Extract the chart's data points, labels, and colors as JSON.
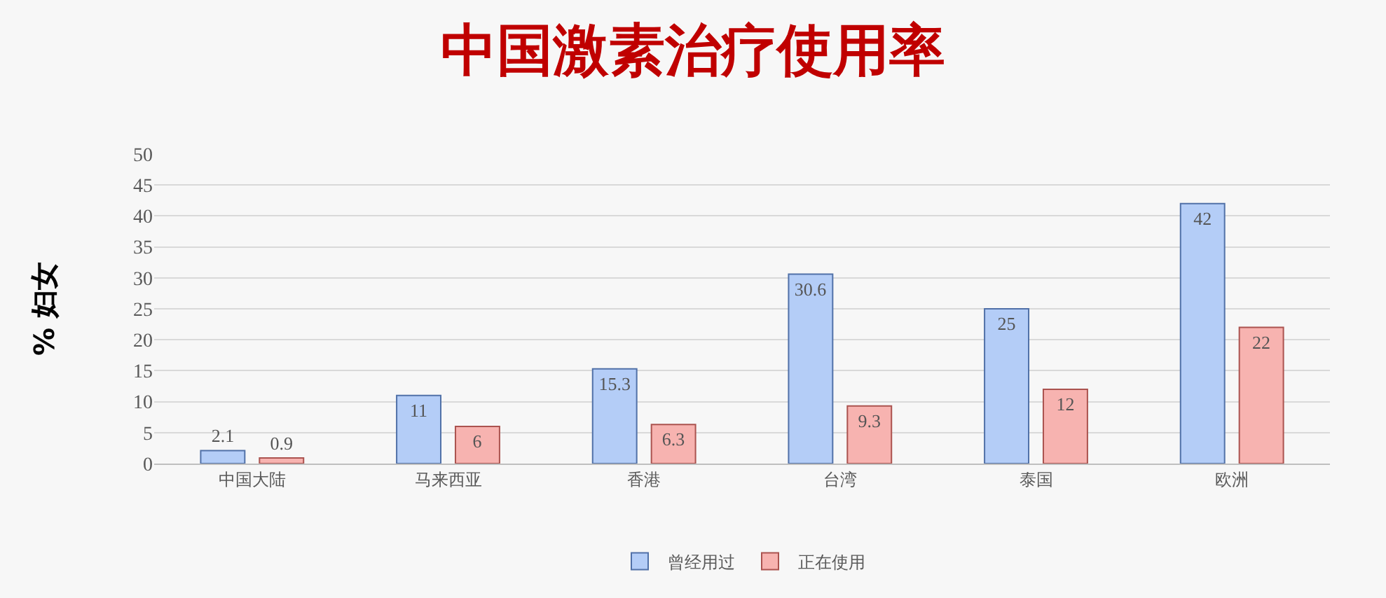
{
  "chart_data": {
    "type": "bar",
    "title": "中国激素治疗使用率",
    "ylabel": "% 妇女",
    "categories": [
      "中国大陆",
      "马来西亚",
      "香港",
      "台湾",
      "泰国",
      "欧洲"
    ],
    "series": [
      {
        "name": "曾经用过",
        "color": "#b4cdf7",
        "values": [
          2.1,
          11,
          15.3,
          30.6,
          25,
          42
        ]
      },
      {
        "name": "正在使用",
        "color": "#f7b3b0",
        "values": [
          0.9,
          6,
          6.3,
          9.3,
          12,
          22
        ]
      }
    ],
    "ylim": [
      0,
      50
    ],
    "yticks": [
      0,
      5,
      10,
      15,
      20,
      25,
      30,
      35,
      40,
      45,
      50
    ],
    "grid": "y",
    "legend": "bottom",
    "data_labels": true
  }
}
